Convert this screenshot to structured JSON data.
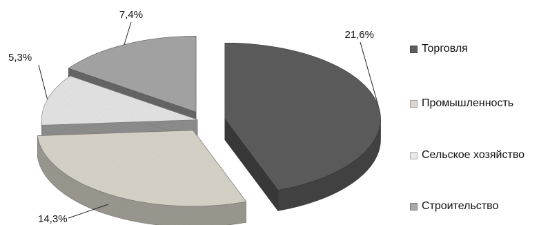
{
  "chart_data": {
    "type": "pie",
    "title": "",
    "variant": "3d-exploded",
    "legend_position": "right",
    "categories": [
      "Торговля",
      "Промышленность",
      "Сельское хозяйство",
      "Строительство"
    ],
    "values": [
      21.6,
      14.3,
      5.3,
      7.4
    ],
    "data_labels": [
      "21,6%",
      "14,3%",
      "5,3%",
      "7,4%"
    ],
    "unit": "%",
    "colors": [
      "#5e5e5e",
      "#dcd7cc",
      "#e8e8e8",
      "#a8a8a8"
    ]
  }
}
